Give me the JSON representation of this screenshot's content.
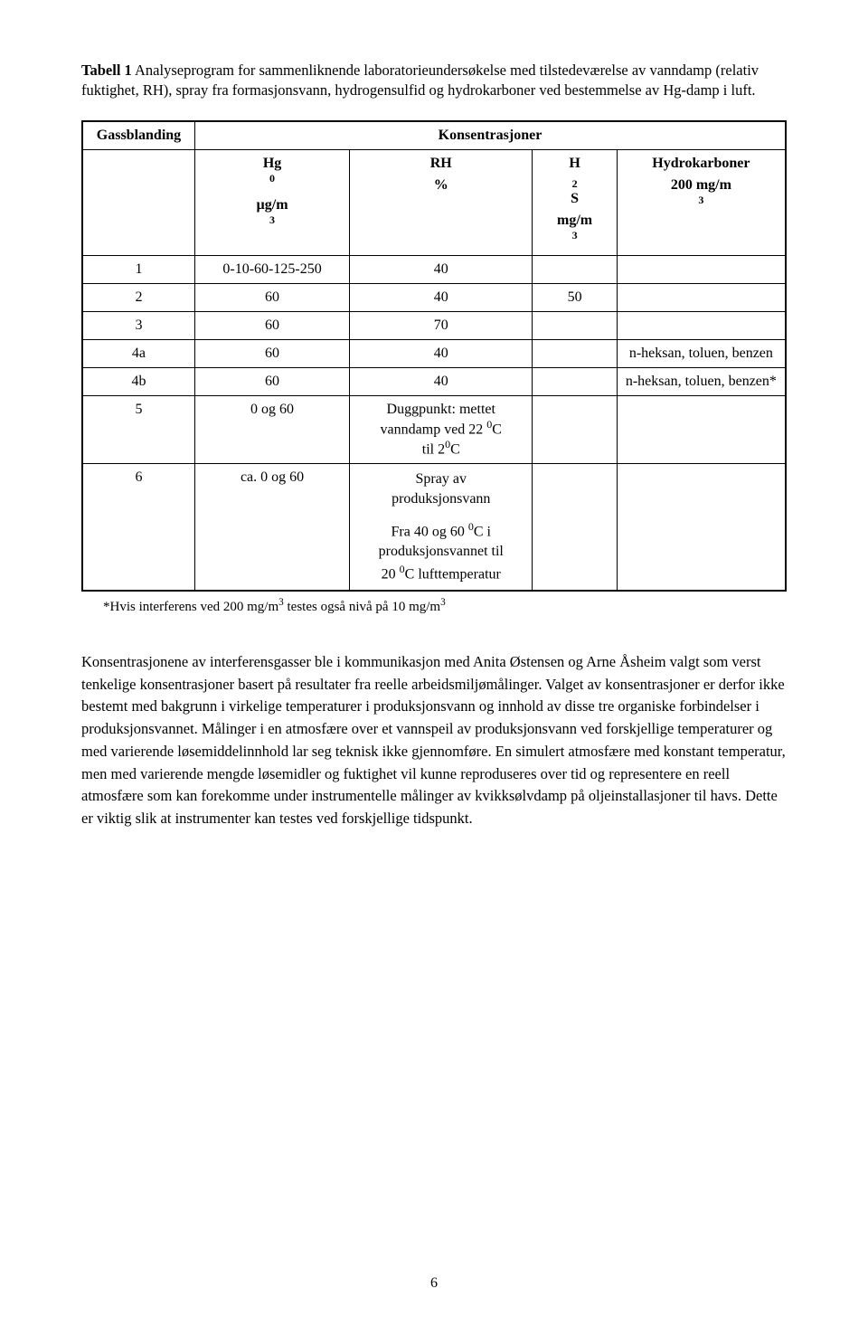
{
  "caption": {
    "bold_lead": "Tabell 1",
    "rest": " Analyseprogram for sammenliknende laboratorieundersøkelse med tilstedeværelse av vanndamp (relativ fuktighet, RH), spray fra formasjonsvann, hydrogensulfid og hydrokarboner ved bestemmelse av Hg-damp i luft."
  },
  "table": {
    "header": {
      "gas_label": "Gassblanding",
      "cons_label": "Konsentrasjoner",
      "sub": {
        "hg": {
          "top": "Hg",
          "top_sup": "0",
          "bot": "µg/m",
          "bot_sup": "3"
        },
        "rh": {
          "top": "RH",
          "bot": "%"
        },
        "h2s": {
          "top_pre": "H",
          "top_sub": "2",
          "top_post": "S",
          "bot": "mg/m",
          "bot_sup": "3"
        },
        "hc": {
          "top": "Hydrokarboner",
          "bot": "200 mg/m",
          "bot_sup": "3"
        }
      }
    },
    "rows": [
      {
        "id": "1",
        "c2": "0-10-60-125-250",
        "c3": "40",
        "c4": "",
        "c5": ""
      },
      {
        "id": "2",
        "c2": "60",
        "c3": "40",
        "c4": "50",
        "c5": ""
      },
      {
        "id": "3",
        "c2": "60",
        "c3": "70",
        "c4": "",
        "c5": ""
      },
      {
        "id": "4a",
        "c2": "60",
        "c3": "40",
        "c4": "",
        "c5": "n-heksan, toluen, benzen"
      },
      {
        "id": "4b",
        "c2": "60",
        "c3": "40",
        "c4": "",
        "c5": "n-heksan, toluen, benzen*"
      }
    ],
    "row5": {
      "id": "5",
      "c2": "0 og 60",
      "c3_l1": "Duggpunkt: mettet",
      "c3_l2_pre": "vanndamp ved 22 ",
      "c3_l2_sup": "0",
      "c3_l2_post": "C",
      "c3_l3_pre": "til 2",
      "c3_l3_sup": "0",
      "c3_l3_post": "C"
    },
    "row6": {
      "id": "6",
      "c2": "ca. 0 og 60",
      "c3_l1": "Spray av",
      "c3_l2": "produksjonsvann",
      "c3_l3_pre": "Fra 40 og 60 ",
      "c3_l3_sup": "0",
      "c3_l3_post": "C i",
      "c3_l4": "produksjonsvannet til",
      "c3_l5_pre": "20 ",
      "c3_l5_sup": "0",
      "c3_l5_post": "C lufttemperatur"
    }
  },
  "footnote": {
    "pre": "*Hvis interferens ved 200 mg/m",
    "sup1": "3",
    "mid": " testes også nivå på 10 mg/m",
    "sup2": "3"
  },
  "body_paragraph": "Konsentrasjonene av interferensgasser ble i kommunikasjon med Anita Østensen og Arne Åsheim valgt som verst tenkelige konsentrasjoner basert på resultater fra reelle arbeidsmiljømålinger. Valget av konsentrasjoner er derfor ikke bestemt med bakgrunn i virkelige temperaturer i produksjonsvann og innhold av disse tre organiske forbindelser i produksjonsvannet. Målinger i en atmosfære over et vannspeil av produksjonsvann ved forskjellige temperaturer og med varierende løsemiddelinnhold lar seg teknisk ikke gjennomføre. En simulert atmosfære med konstant temperatur, men med varierende mengde løsemidler og fuktighet vil kunne reproduseres over tid og representere en reell atmosfære som kan forekomme under instrumentelle målinger av kvikksølvdamp på oljeinstallasjoner til havs. Dette er viktig slik at instrumenter kan testes ved forskjellige tidspunkt.",
  "page_number": "6",
  "colors": {
    "text": "#000000",
    "bg": "#ffffff",
    "border": "#000000"
  },
  "fontsizes": {
    "body": 16.5,
    "table": 16,
    "footnote": 15
  }
}
